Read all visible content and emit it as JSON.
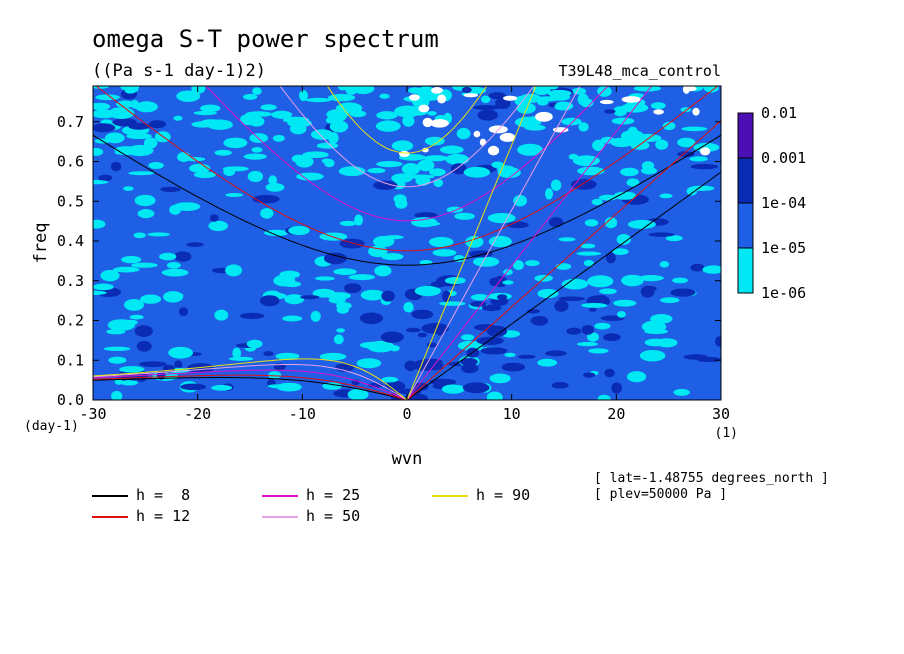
{
  "chart_data": {
    "type": "heatmap",
    "title": "omega S-T power spectrum",
    "subtitle": "((Pa s-1 day-1)2)",
    "run_label": "T39L48_mca_control",
    "xlabel": "wvn",
    "ylabel": "freq",
    "x_unit": "(1)",
    "y_unit": "(day-1)",
    "xlim": [
      -30,
      30
    ],
    "ylim": [
      0,
      0.79
    ],
    "x_ticks": [
      -30,
      -20,
      -10,
      0,
      10,
      20,
      30
    ],
    "x_tick_labels": [
      "-30",
      "-20",
      "-10",
      "0",
      "10",
      "20",
      "30"
    ],
    "y_ticks": [
      0.0,
      0.1,
      0.2,
      0.3,
      0.4,
      0.5,
      0.6,
      0.7
    ],
    "y_tick_labels": [
      "0.0",
      "0.1",
      "0.2",
      "0.3",
      "0.4",
      "0.5",
      "0.6",
      "0.7"
    ],
    "colorbar": {
      "labels": [
        "0.01",
        "0.001",
        "1e-04",
        "1e-05",
        "1e-06"
      ],
      "levels": [
        0.01,
        0.001,
        0.0001,
        1e-05,
        1e-06
      ],
      "colors": [
        "#4b0fb4",
        "#0a2bb4",
        "#1e5fe6",
        "#00e8f4"
      ]
    },
    "field_colors": {
      "background": "#1e5fe6",
      "low": "#00e8f4",
      "high": "#0a2bb4",
      "very_low": "#ffffff"
    },
    "dispersion_curves": [
      {
        "name": "h =  8",
        "h": 8,
        "color": "#000000"
      },
      {
        "name": "h = 12",
        "h": 12,
        "color": "#e01010"
      },
      {
        "name": "h = 25",
        "h": 25,
        "color": "#e010c8"
      },
      {
        "name": "h = 50",
        "h": 50,
        "color": "#e8a0e8"
      },
      {
        "name": "h = 90",
        "h": 90,
        "color": "#e8e010"
      }
    ],
    "annotations": [
      "[ lat=-1.48755 degrees_north ]",
      "[ plev=50000 Pa ]"
    ]
  },
  "legend": {
    "items": [
      {
        "label": "h =  8",
        "color": "#000000"
      },
      {
        "label": "h = 12",
        "color": "#e01010"
      },
      {
        "label": "h = 25",
        "color": "#e010c8"
      },
      {
        "label": "h = 50",
        "color": "#e8a0e8"
      },
      {
        "label": "h = 90",
        "color": "#e8e010"
      }
    ]
  }
}
